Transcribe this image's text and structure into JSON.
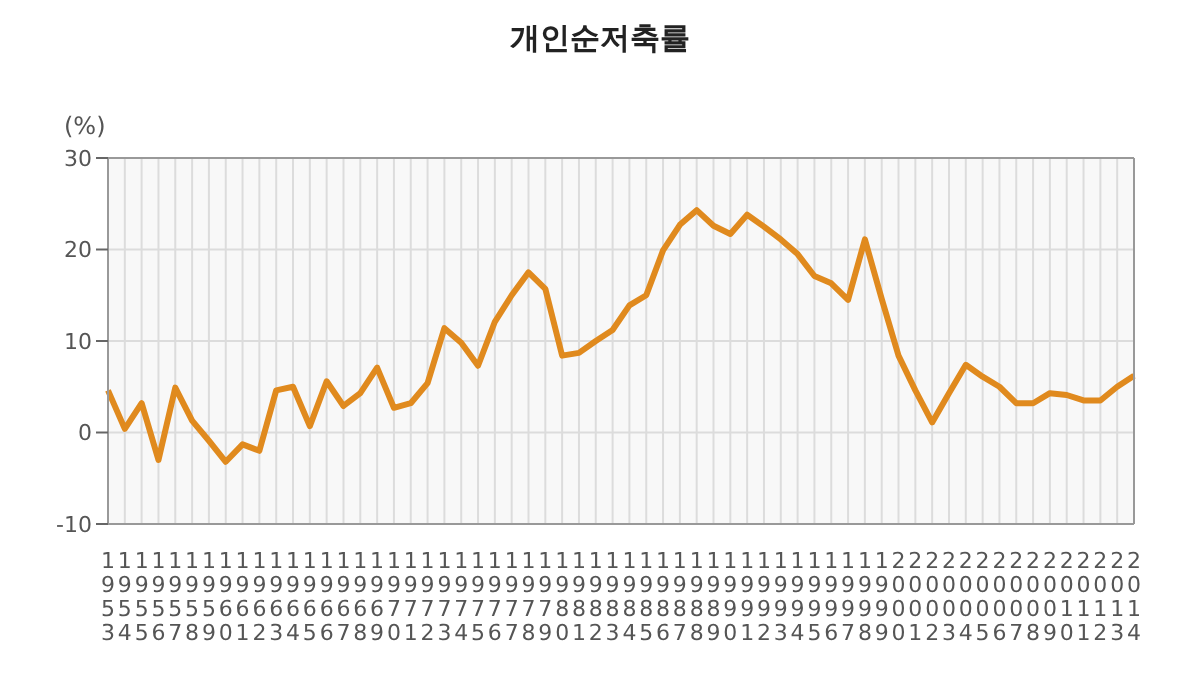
{
  "chart_data": {
    "type": "line",
    "title": "개인순저축률",
    "ylabel": "(%)",
    "categories": [
      "1953",
      "1954",
      "1955",
      "1956",
      "1957",
      "1958",
      "1959",
      "1960",
      "1961",
      "1962",
      "1963",
      "1964",
      "1965",
      "1966",
      "1967",
      "1968",
      "1969",
      "1970",
      "1971",
      "1972",
      "1973",
      "1974",
      "1975",
      "1976",
      "1977",
      "1978",
      "1979",
      "1980",
      "1981",
      "1982",
      "1983",
      "1984",
      "1985",
      "1986",
      "1987",
      "1988",
      "1989",
      "1990",
      "1991",
      "1992",
      "1993",
      "1994",
      "1995",
      "1996",
      "1997",
      "1998",
      "1999",
      "2000",
      "2001",
      "2002",
      "2003",
      "2004",
      "2005",
      "2006",
      "2007",
      "2008",
      "2009",
      "2010",
      "2011",
      "2012",
      "2013",
      "2014"
    ],
    "series": [
      {
        "color": "#e08a1e",
        "values": [
          4.6,
          0.4,
          3.2,
          -3.0,
          4.9,
          1.3,
          -0.9,
          -3.2,
          -1.3,
          -2.0,
          4.6,
          5.0,
          0.7,
          5.6,
          2.9,
          4.3,
          7.1,
          2.7,
          3.2,
          5.4,
          11.4,
          9.8,
          7.3,
          12.1,
          15.0,
          17.5,
          15.7,
          8.4,
          8.7,
          10.0,
          11.2,
          13.9,
          15.0,
          19.9,
          22.7,
          24.3,
          22.6,
          21.7,
          23.8,
          22.5,
          21.1,
          19.5,
          17.1,
          16.3,
          14.5,
          21.1,
          14.6,
          8.4,
          4.6,
          1.1,
          4.3,
          7.4,
          6.1,
          5.0,
          3.2,
          3.2,
          4.3,
          4.1,
          3.5,
          3.5,
          5.0,
          6.2
        ]
      }
    ],
    "ylim": [
      -10,
      30
    ],
    "yticks": [
      -10,
      0,
      10,
      20,
      30
    ],
    "grid": true,
    "marker": "none",
    "line_style": "solid"
  }
}
